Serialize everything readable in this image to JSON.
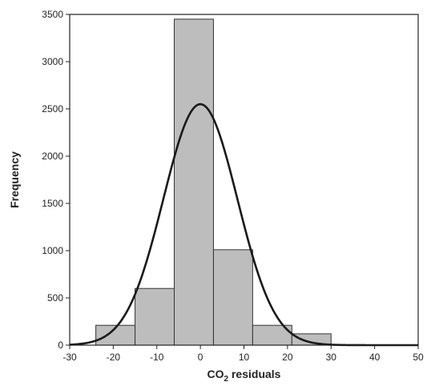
{
  "chart_data": {
    "type": "bar",
    "subtype": "histogram_with_normal_fit",
    "title": "",
    "xlabel_main": "CO",
    "xlabel_sub": "2",
    "xlabel_rest": " residuals",
    "ylabel": "Frequency",
    "xlim": [
      -30,
      50
    ],
    "ylim": [
      0,
      3500
    ],
    "x_ticks": [
      -30,
      -20,
      -10,
      0,
      10,
      20,
      30,
      40,
      50
    ],
    "y_ticks": [
      0,
      500,
      1000,
      1500,
      2000,
      2500,
      3000,
      3500
    ],
    "bins": [
      {
        "start": -24,
        "end": -15,
        "value": 210
      },
      {
        "start": -15,
        "end": -6,
        "value": 600
      },
      {
        "start": -6,
        "end": 3,
        "value": 3450
      },
      {
        "start": 3,
        "end": 12,
        "value": 1010
      },
      {
        "start": 12,
        "end": 21,
        "value": 210
      },
      {
        "start": 21,
        "end": 30,
        "value": 120
      }
    ],
    "normal_curve": {
      "mean": 0,
      "sd": 8.5,
      "peak": 2550
    },
    "colors": {
      "bar_fill": "#bdbdbd",
      "bar_stroke": "#333333",
      "curve": "#1a1a1a"
    },
    "grid": false,
    "legend": "none"
  }
}
